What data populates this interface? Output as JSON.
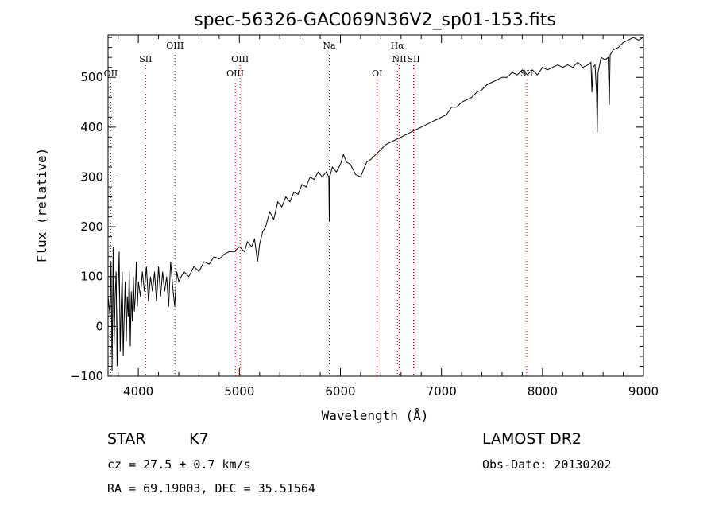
{
  "page": {
    "title": "spec-56326-GAC069N36V2_sp01-153.fits"
  },
  "info": {
    "classification": "STAR",
    "subclass": "K7",
    "survey": "LAMOST DR2",
    "cz": "cz = 27.5 ± 0.7 km/s",
    "obs_date": "Obs-Date: 20130202",
    "radec": "RA =  69.19003, DEC =  35.51564"
  },
  "chart_data": {
    "type": "line",
    "title": "spec-56326-GAC069N36V2_sp01-153.fits",
    "xlabel": "Wavelength (Å)",
    "ylabel": "Flux (relative)",
    "xlim": [
      3700,
      9000
    ],
    "ylim": [
      -100,
      585
    ],
    "x_ticks": [
      4000,
      5000,
      6000,
      7000,
      8000,
      9000
    ],
    "y_ticks": [
      -100,
      0,
      100,
      200,
      300,
      400,
      500
    ],
    "grid": false,
    "line_color": "#000000",
    "marker_color": "#cc0000",
    "spectral_lines": [
      {
        "label": "OII",
        "wavelength": 3727,
        "row": 3
      },
      {
        "label": "SII",
        "wavelength": 4072,
        "row": 2
      },
      {
        "label": "OIII",
        "wavelength": 4363,
        "row": 1
      },
      {
        "label": "OIII",
        "wavelength": 4959,
        "row": 3
      },
      {
        "label": "OIII",
        "wavelength": 5007,
        "row": 2
      },
      {
        "label": "Na",
        "wavelength": 5890,
        "row": 1
      },
      {
        "label": "OI",
        "wavelength": 6364,
        "row": 3
      },
      {
        "label": "Hα",
        "wavelength": 6563,
        "row": 1
      },
      {
        "label": "NII",
        "wavelength": 6583,
        "row": 2
      },
      {
        "label": "SII",
        "wavelength": 6724,
        "row": 2
      },
      {
        "label": "SII",
        "wavelength": 7844,
        "row": 3
      }
    ],
    "series": [
      {
        "values": [
          [
            3700,
            60
          ],
          [
            3720,
            20
          ],
          [
            3730,
            130
          ],
          [
            3740,
            -90
          ],
          [
            3750,
            160
          ],
          [
            3760,
            -40
          ],
          [
            3770,
            60
          ],
          [
            3780,
            110
          ],
          [
            3790,
            -80
          ],
          [
            3800,
            70
          ],
          [
            3810,
            150
          ],
          [
            3820,
            -50
          ],
          [
            3830,
            40
          ],
          [
            3840,
            110
          ],
          [
            3850,
            -60
          ],
          [
            3860,
            20
          ],
          [
            3870,
            90
          ],
          [
            3880,
            -30
          ],
          [
            3890,
            60
          ],
          [
            3900,
            20
          ],
          [
            3910,
            110
          ],
          [
            3920,
            -40
          ],
          [
            3930,
            70
          ],
          [
            3940,
            10
          ],
          [
            3950,
            100
          ],
          [
            3960,
            30
          ],
          [
            3970,
            60
          ],
          [
            3980,
            130
          ],
          [
            3990,
            40
          ],
          [
            4000,
            90
          ],
          [
            4020,
            60
          ],
          [
            4040,
            110
          ],
          [
            4060,
            70
          ],
          [
            4080,
            120
          ],
          [
            4100,
            50
          ],
          [
            4120,
            100
          ],
          [
            4140,
            70
          ],
          [
            4160,
            110
          ],
          [
            4180,
            50
          ],
          [
            4200,
            120
          ],
          [
            4220,
            60
          ],
          [
            4240,
            110
          ],
          [
            4260,
            70
          ],
          [
            4280,
            100
          ],
          [
            4300,
            40
          ],
          [
            4320,
            130
          ],
          [
            4340,
            80
          ],
          [
            4360,
            40
          ],
          [
            4380,
            110
          ],
          [
            4400,
            90
          ],
          [
            4450,
            110
          ],
          [
            4500,
            100
          ],
          [
            4550,
            120
          ],
          [
            4600,
            110
          ],
          [
            4650,
            130
          ],
          [
            4700,
            125
          ],
          [
            4750,
            140
          ],
          [
            4800,
            135
          ],
          [
            4850,
            145
          ],
          [
            4900,
            150
          ],
          [
            4950,
            150
          ],
          [
            5000,
            160
          ],
          [
            5050,
            150
          ],
          [
            5080,
            170
          ],
          [
            5120,
            160
          ],
          [
            5150,
            175
          ],
          [
            5180,
            130
          ],
          [
            5200,
            165
          ],
          [
            5230,
            190
          ],
          [
            5260,
            200
          ],
          [
            5300,
            230
          ],
          [
            5340,
            215
          ],
          [
            5380,
            250
          ],
          [
            5420,
            240
          ],
          [
            5460,
            260
          ],
          [
            5500,
            250
          ],
          [
            5540,
            270
          ],
          [
            5580,
            265
          ],
          [
            5620,
            285
          ],
          [
            5660,
            280
          ],
          [
            5700,
            300
          ],
          [
            5740,
            295
          ],
          [
            5780,
            310
          ],
          [
            5820,
            300
          ],
          [
            5860,
            310
          ],
          [
            5885,
            300
          ],
          [
            5890,
            210
          ],
          [
            5895,
            300
          ],
          [
            5920,
            320
          ],
          [
            5960,
            310
          ],
          [
            6000,
            325
          ],
          [
            6030,
            345
          ],
          [
            6060,
            330
          ],
          [
            6100,
            325
          ],
          [
            6150,
            305
          ],
          [
            6200,
            300
          ],
          [
            6230,
            315
          ],
          [
            6260,
            330
          ],
          [
            6300,
            335
          ],
          [
            6350,
            345
          ],
          [
            6400,
            355
          ],
          [
            6450,
            365
          ],
          [
            6500,
            370
          ],
          [
            6550,
            375
          ],
          [
            6600,
            380
          ],
          [
            6650,
            385
          ],
          [
            6700,
            390
          ],
          [
            6750,
            395
          ],
          [
            6800,
            400
          ],
          [
            6850,
            405
          ],
          [
            6900,
            410
          ],
          [
            6950,
            415
          ],
          [
            7000,
            420
          ],
          [
            7050,
            425
          ],
          [
            7100,
            440
          ],
          [
            7150,
            440
          ],
          [
            7200,
            450
          ],
          [
            7250,
            455
          ],
          [
            7300,
            460
          ],
          [
            7350,
            470
          ],
          [
            7400,
            475
          ],
          [
            7450,
            485
          ],
          [
            7500,
            490
          ],
          [
            7550,
            495
          ],
          [
            7600,
            500
          ],
          [
            7650,
            500
          ],
          [
            7700,
            510
          ],
          [
            7750,
            505
          ],
          [
            7800,
            515
          ],
          [
            7850,
            505
          ],
          [
            7900,
            515
          ],
          [
            7950,
            505
          ],
          [
            8000,
            520
          ],
          [
            8050,
            515
          ],
          [
            8100,
            520
          ],
          [
            8150,
            525
          ],
          [
            8200,
            520
          ],
          [
            8250,
            525
          ],
          [
            8300,
            520
          ],
          [
            8350,
            530
          ],
          [
            8400,
            520
          ],
          [
            8450,
            525
          ],
          [
            8480,
            530
          ],
          [
            8490,
            470
          ],
          [
            8500,
            520
          ],
          [
            8520,
            525
          ],
          [
            8535,
            470
          ],
          [
            8542,
            390
          ],
          [
            8550,
            510
          ],
          [
            8580,
            540
          ],
          [
            8620,
            535
          ],
          [
            8650,
            540
          ],
          [
            8662,
            445
          ],
          [
            8670,
            545
          ],
          [
            8700,
            555
          ],
          [
            8750,
            560
          ],
          [
            8800,
            570
          ],
          [
            8850,
            575
          ],
          [
            8900,
            580
          ],
          [
            8950,
            575
          ],
          [
            9000,
            580
          ]
        ]
      }
    ]
  }
}
